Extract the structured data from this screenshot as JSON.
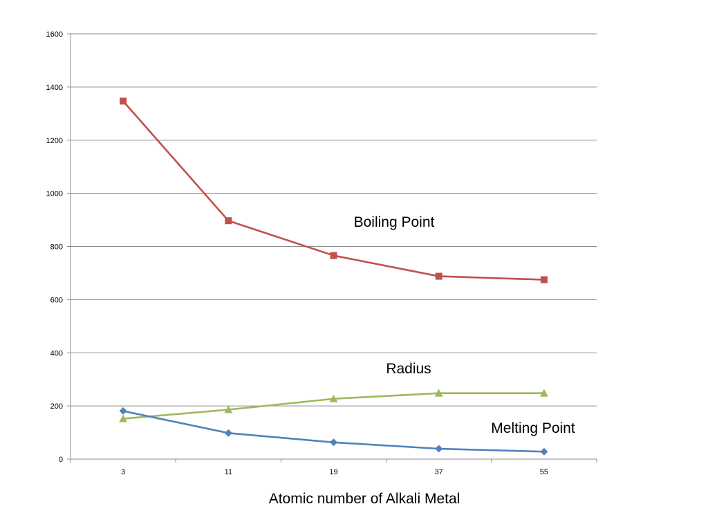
{
  "chart_data": {
    "type": "line",
    "title": "",
    "xlabel": "Atomic number of Alkali Metal",
    "ylabel": "",
    "categories": [
      "3",
      "11",
      "19",
      "37",
      "55"
    ],
    "ylim": [
      0,
      1600
    ],
    "y_ticks": [
      "0",
      "200",
      "400",
      "600",
      "800",
      "1000",
      "1200",
      "1400",
      "1600"
    ],
    "grid": "horizontal",
    "legend": "none",
    "series": [
      {
        "name": "Boiling Point",
        "values": [
          1347,
          897,
          766,
          688,
          675
        ],
        "color": "#c0504d",
        "marker": "square"
      },
      {
        "name": "Radius",
        "values": [
          152,
          186,
          227,
          248,
          248
        ],
        "color": "#9bbb59",
        "marker": "triangle"
      },
      {
        "name": "Melting Point",
        "values": [
          181,
          98,
          63,
          39,
          28
        ],
        "color": "#4f81bd",
        "marker": "diamond"
      }
    ],
    "annotations": [
      {
        "text": "Boiling Point",
        "series": "Boiling Point"
      },
      {
        "text": "Radius",
        "series": "Radius"
      },
      {
        "text": "Melting Point",
        "series": "Melting Point"
      }
    ]
  }
}
